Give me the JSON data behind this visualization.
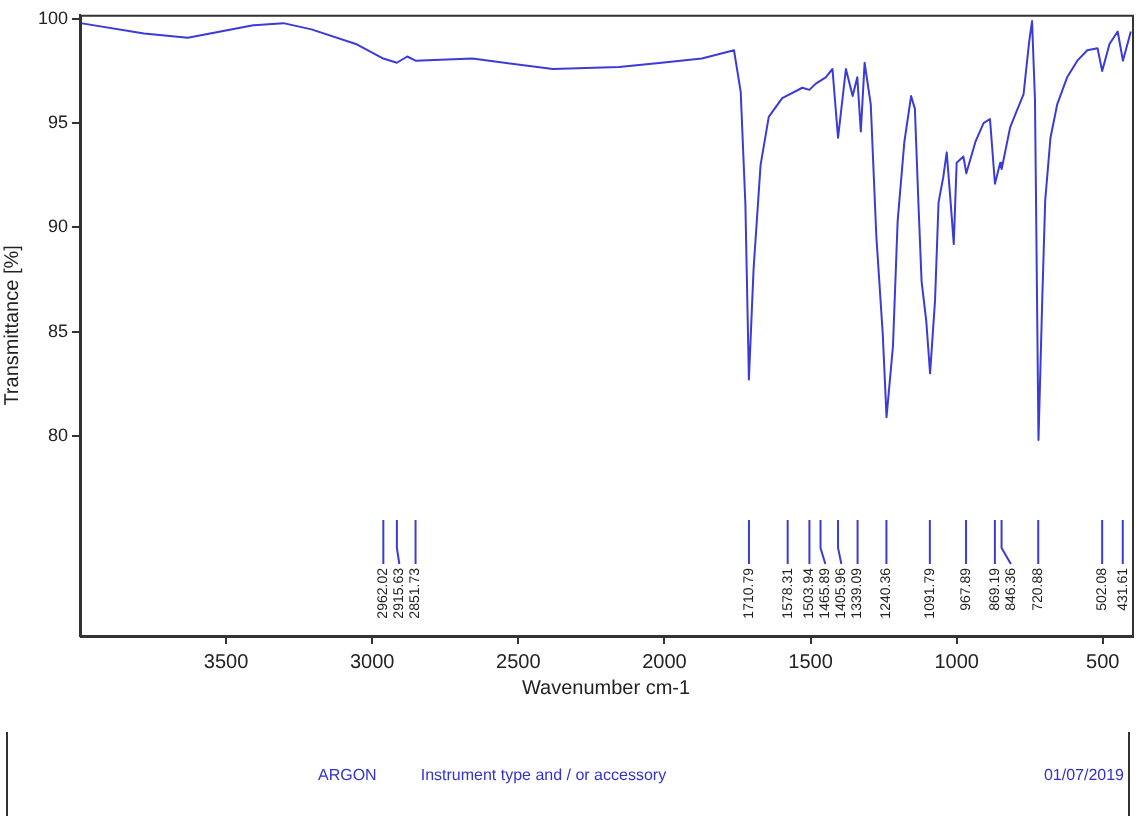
{
  "chart_data": {
    "type": "line",
    "xlabel": "Wavenumber cm-1",
    "ylabel": "Transmittance [%]",
    "xlim": [
      4000,
      400
    ],
    "xticks": [
      3500,
      3000,
      2500,
      2000,
      1500,
      1000,
      500
    ],
    "ylim": [
      70.4,
      100.2
    ],
    "yticks": [
      80,
      85,
      90,
      95,
      100
    ],
    "grid": false,
    "legend": false,
    "marker": "none",
    "line_style": "solid",
    "series": [
      {
        "color": "#3b3bd6",
        "x": [
          3998,
          3781,
          3631,
          3407,
          3304,
          3208,
          3056,
          2962.02,
          2915.63,
          2880,
          2851.73,
          2657,
          2382,
          2155,
          2010,
          1872,
          1762,
          1739,
          1723,
          1711,
          1695,
          1671,
          1643,
          1597,
          1528,
          1503.94,
          1482,
          1448,
          1425,
          1406,
          1379,
          1356,
          1340,
          1328,
          1315,
          1294,
          1275,
          1253,
          1240,
          1218,
          1202,
          1179,
          1156,
          1143,
          1131,
          1120,
          1104,
          1091,
          1074,
          1062,
          1046,
          1034,
          1019,
          1010,
          1000,
          977,
          967,
          936,
          908,
          886,
          869,
          851,
          846,
          817,
          794,
          771,
          752,
          742,
          732,
          725,
          720,
          707,
          697,
          679,
          656,
          622,
          587,
          553,
          518,
          502,
          477,
          449,
          431,
          404
        ],
        "values": [
          99.8,
          99.3,
          99.1,
          99.7,
          99.8,
          99.5,
          98.8,
          98.1,
          97.9,
          98.2,
          98.0,
          98.1,
          97.6,
          97.7,
          97.9,
          98.1,
          98.5,
          96.5,
          91.1,
          82.7,
          88.0,
          93.0,
          95.3,
          96.2,
          96.7,
          96.6,
          96.9,
          97.2,
          97.6,
          94.3,
          97.6,
          96.3,
          97.2,
          94.6,
          97.9,
          95.9,
          89.6,
          84.9,
          80.9,
          84.3,
          90.3,
          94.1,
          96.3,
          95.7,
          91.2,
          87.4,
          85.5,
          83.0,
          86.5,
          91.2,
          92.4,
          93.6,
          90.9,
          89.2,
          93.1,
          93.4,
          92.6,
          94.1,
          95.0,
          95.2,
          92.1,
          93.1,
          92.8,
          94.8,
          95.6,
          96.4,
          98.9,
          99.9,
          96.1,
          86.6,
          79.8,
          86.6,
          91.3,
          94.3,
          95.9,
          97.2,
          98.0,
          98.5,
          98.6,
          97.5,
          98.8,
          99.4,
          98.0,
          99.4
        ]
      }
    ],
    "annotations": [
      {
        "text": "2962.02",
        "x": 2962.02
      },
      {
        "text": "2915.63",
        "x": 2915.63
      },
      {
        "text": "2851.73",
        "x": 2851.73
      },
      {
        "text": "1710.79",
        "x": 1710.79
      },
      {
        "text": "1578.31",
        "x": 1578.31
      },
      {
        "text": "1503.94",
        "x": 1503.94
      },
      {
        "text": "1465.89",
        "x": 1465.89
      },
      {
        "text": "1405.96",
        "x": 1405.96
      },
      {
        "text": "1339.09",
        "x": 1339.09
      },
      {
        "text": "1240.36",
        "x": 1240.36
      },
      {
        "text": "1091.79",
        "x": 1091.79
      },
      {
        "text": "967.89",
        "x": 967.89
      },
      {
        "text": "869.19",
        "x": 869.19
      },
      {
        "text": "846.36",
        "x": 846.36
      },
      {
        "text": "720.88",
        "x": 720.88
      },
      {
        "text": "502.08",
        "x": 502.08
      },
      {
        "text": "431.61",
        "x": 431.61
      },
      "ARGON",
      "Instrument type and / or accessory",
      "01/07/2019"
    ]
  }
}
